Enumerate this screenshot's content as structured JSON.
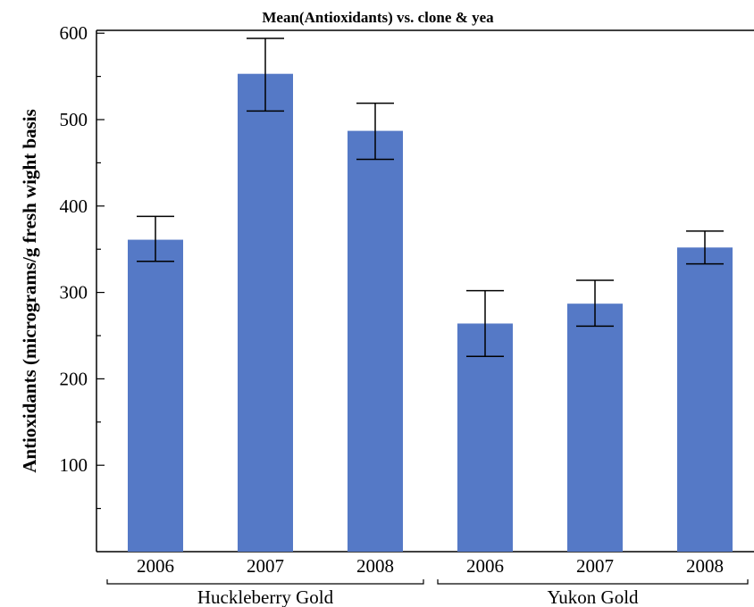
{
  "chart_data": {
    "type": "bar",
    "title": "Mean(Antioxidants) vs. clone & yea",
    "ylabel": "Antioxidants (micrograms/g fresh wight basis",
    "xlabel": "",
    "ylim": [
      0,
      620
    ],
    "yticks": [
      100,
      200,
      300,
      400,
      500,
      600
    ],
    "grid": false,
    "bar_color": "#5579c6",
    "groups": [
      {
        "name": "Huckleberry Gold",
        "bars": [
          {
            "category": "2006",
            "value": 361,
            "err_low": 336,
            "err_high": 388
          },
          {
            "category": "2007",
            "value": 553,
            "err_low": 510,
            "err_high": 594
          },
          {
            "category": "2008",
            "value": 487,
            "err_low": 454,
            "err_high": 519
          }
        ]
      },
      {
        "name": "Yukon Gold",
        "bars": [
          {
            "category": "2006",
            "value": 264,
            "err_low": 226,
            "err_high": 302
          },
          {
            "category": "2007",
            "value": 287,
            "err_low": 261,
            "err_high": 314
          },
          {
            "category": "2008",
            "value": 352,
            "err_low": 333,
            "err_high": 371
          }
        ]
      }
    ]
  }
}
